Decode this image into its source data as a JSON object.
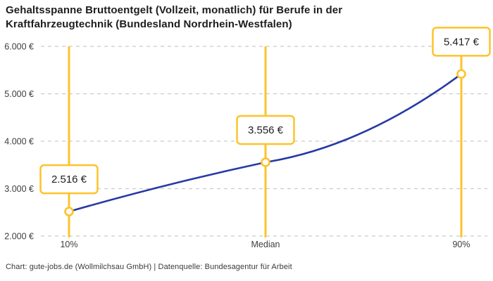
{
  "title": {
    "lines": [
      "Gehaltsspanne Bruttoentgelt (Vollzeit, monatlich) für Berufe in der",
      "Kraftfahrzeugtechnik (Bundesland Nordrhein-Westfalen)"
    ]
  },
  "footer": {
    "text": "Chart: gute-jobs.de (Wollmilchsau GmbH) | Datenquelle: Bundesagentur für Arbeit"
  },
  "colors": {
    "accent_yellow": "#FDC32C",
    "line_blue": "#2639A4",
    "grid_gray": "#CBCBCB",
    "text_dark": "#1D1D1D",
    "text_muted": "#3D3D3D",
    "marker_fill": "#FFFFFF",
    "label_box_bg": "#FFFFFF"
  },
  "chart_data": {
    "type": "line",
    "title": "Gehaltsspanne Bruttoentgelt (Vollzeit, monatlich) für Berufe in der Kraftfahrzeugtechnik (Bundesland Nordrhein-Westfalen)",
    "xlabel": "",
    "ylabel": "",
    "x_categories": [
      "10%",
      "Median",
      "90%"
    ],
    "values": [
      2516,
      3556,
      5417
    ],
    "point_labels": [
      "2.516 €",
      "3.556 €",
      "5.417 €"
    ],
    "ylim": [
      2000,
      6000
    ],
    "y_ticks": [
      {
        "value": 6000,
        "label": "6.000 €"
      },
      {
        "value": 5000,
        "label": "5.000 €"
      },
      {
        "value": 4000,
        "label": "4.000 €"
      },
      {
        "value": 3000,
        "label": "3.000 €"
      },
      {
        "value": 2000,
        "label": "2.000 €"
      }
    ],
    "grid": "horizontal-dashed",
    "legend": "none"
  }
}
